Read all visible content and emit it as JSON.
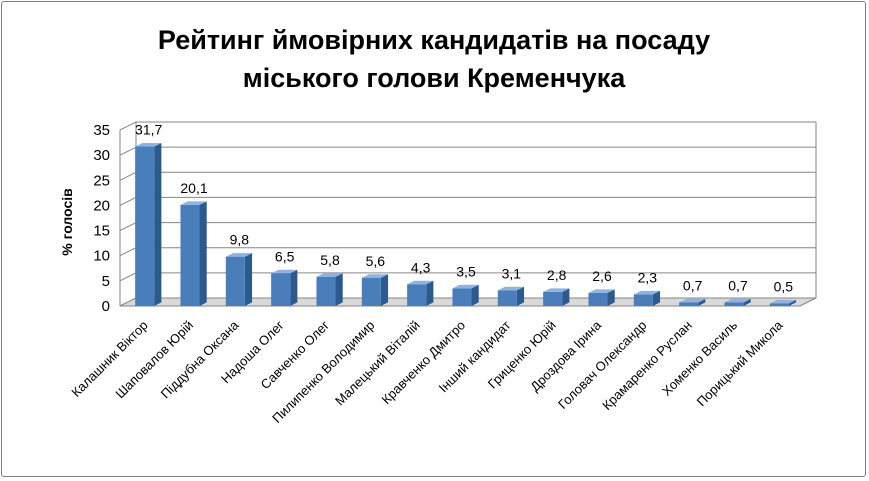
{
  "chart_data": {
    "type": "bar",
    "title_lines": [
      "Рейтинг ймовірних кандидатів на посаду",
      "міського голови Кременчука"
    ],
    "ylabel": "% голосів",
    "xlabel": "",
    "ylim": [
      0,
      35
    ],
    "yticks": [
      0,
      5,
      10,
      15,
      20,
      25,
      30,
      35
    ],
    "grid": true,
    "legend": "none",
    "bar_style": "3d-column",
    "categories": [
      "Калашник Віктор",
      "Шаповалов Юрій",
      "Піддубна Оксана",
      "Надоша Олег",
      "Савченко Олег",
      "Пилипенко Володимир",
      "Малецький Віталій",
      "Кравченко Дмитро",
      "Інший кандидат",
      "Гриценко Юрій",
      "Дроздова Ірина",
      "Головач Олександр",
      "Крамаренко Руслан",
      "Хоменко Василь",
      "Порицький Микола"
    ],
    "values": [
      31.7,
      20.1,
      9.8,
      6.5,
      5.8,
      5.6,
      4.3,
      3.5,
      3.1,
      2.8,
      2.6,
      2.3,
      0.7,
      0.7,
      0.5
    ],
    "value_labels": [
      "31,7",
      "20,1",
      "9,8",
      "6,5",
      "5,8",
      "5,6",
      "4,3",
      "3,5",
      "3,1",
      "2,8",
      "2,6",
      "2,3",
      "0,7",
      "0,7",
      "0,5"
    ],
    "colors": {
      "bar_front": "#4a7ebb",
      "bar_side": "#2c5a8f",
      "bar_top": "#8fb2df",
      "grid": "#868686",
      "axis": "#868686",
      "floor": "#d9d9d9"
    }
  }
}
